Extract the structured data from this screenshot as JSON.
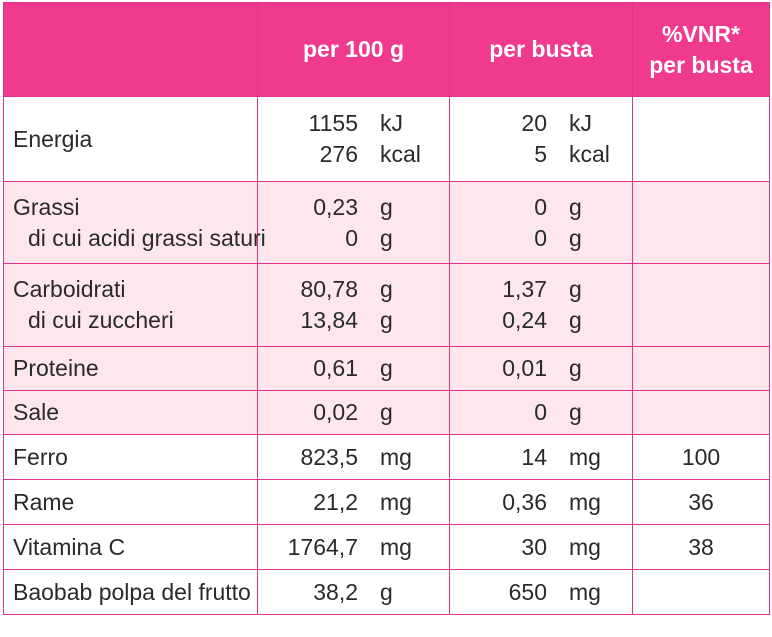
{
  "header": {
    "col_label": "",
    "col_per100": "per 100 g",
    "col_busta": "per busta",
    "col_vnr_line1": "%VNR*",
    "col_vnr_line2": "per busta"
  },
  "rows": {
    "energia": {
      "label": "Energia",
      "p100": [
        {
          "value": "1155",
          "unit": "kJ"
        },
        {
          "value": "276",
          "unit": "kcal"
        }
      ],
      "busta": [
        {
          "value": "20",
          "unit": "kJ"
        },
        {
          "value": "5",
          "unit": "kcal"
        }
      ],
      "vnr": ""
    },
    "grassi": {
      "label": "Grassi",
      "sublabel": "di cui acidi grassi saturi",
      "p100": [
        {
          "value": "0,23",
          "unit": "g"
        },
        {
          "value": "0",
          "unit": "g"
        }
      ],
      "busta": [
        {
          "value": "0",
          "unit": "g"
        },
        {
          "value": "0",
          "unit": "g"
        }
      ],
      "vnr": ""
    },
    "carbo": {
      "label": "Carboidrati",
      "sublabel": "di cui zuccheri",
      "p100": [
        {
          "value": "80,78",
          "unit": "g"
        },
        {
          "value": "13,84",
          "unit": "g"
        }
      ],
      "busta": [
        {
          "value": "1,37",
          "unit": "g"
        },
        {
          "value": "0,24",
          "unit": "g"
        }
      ],
      "vnr": ""
    },
    "proteine": {
      "label": "Proteine",
      "p100": {
        "value": "0,61",
        "unit": "g"
      },
      "busta": {
        "value": "0,01",
        "unit": "g"
      },
      "vnr": ""
    },
    "sale": {
      "label": "Sale",
      "p100": {
        "value": "0,02",
        "unit": "g"
      },
      "busta": {
        "value": "0",
        "unit": "g"
      },
      "vnr": ""
    },
    "ferro": {
      "label": "Ferro",
      "p100": {
        "value": "823,5",
        "unit": "mg"
      },
      "busta": {
        "value": "14",
        "unit": "mg"
      },
      "vnr": "100"
    },
    "rame": {
      "label": "Rame",
      "p100": {
        "value": "21,2",
        "unit": "mg"
      },
      "busta": {
        "value": "0,36",
        "unit": "mg"
      },
      "vnr": "36"
    },
    "vitc": {
      "label": "Vitamina C",
      "p100": {
        "value": "1764,7",
        "unit": "mg"
      },
      "busta": {
        "value": "30",
        "unit": "mg"
      },
      "vnr": "38"
    },
    "baobab": {
      "label": "Baobab polpa del frutto",
      "p100": {
        "value": "38,2",
        "unit": "g"
      },
      "busta": {
        "value": "650",
        "unit": "mg"
      },
      "vnr": ""
    }
  },
  "colors": {
    "header_bg": "#ef3a8e",
    "border": "#e0338a",
    "tint_row": "#fde6ec",
    "text": "#2a2a2a"
  }
}
